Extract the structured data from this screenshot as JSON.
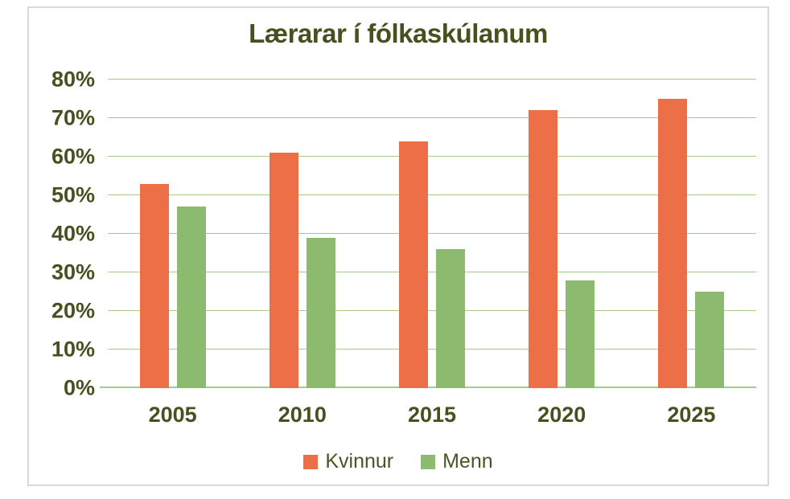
{
  "chart_data": {
    "type": "bar",
    "title": "Lærarar í fólkaskúlanum",
    "categories": [
      "2005",
      "2010",
      "2015",
      "2020",
      "2025"
    ],
    "series": [
      {
        "name": "Kvinnur",
        "color": "#EC6F48",
        "values": [
          53,
          61,
          64,
          72,
          75
        ]
      },
      {
        "name": "Menn",
        "color": "#8CBA6F",
        "values": [
          47,
          39,
          36,
          28,
          25
        ]
      }
    ],
    "y_axis": {
      "min": 0,
      "max": 80,
      "step": 10,
      "tick_labels": [
        "0%",
        "10%",
        "20%",
        "30%",
        "40%",
        "50%",
        "60%",
        "70%",
        "80%"
      ]
    },
    "grid": true,
    "legend_position": "bottom"
  },
  "colors": {
    "kvinnur_bar": "#EC6F48",
    "menn_bar": "#8CBA6F",
    "gridline": "#A5CD8D",
    "axis_text": "#45511E",
    "legend_text": "#4A5424",
    "frame_border": "#D9D9D9",
    "background": "#FFFFFF"
  }
}
